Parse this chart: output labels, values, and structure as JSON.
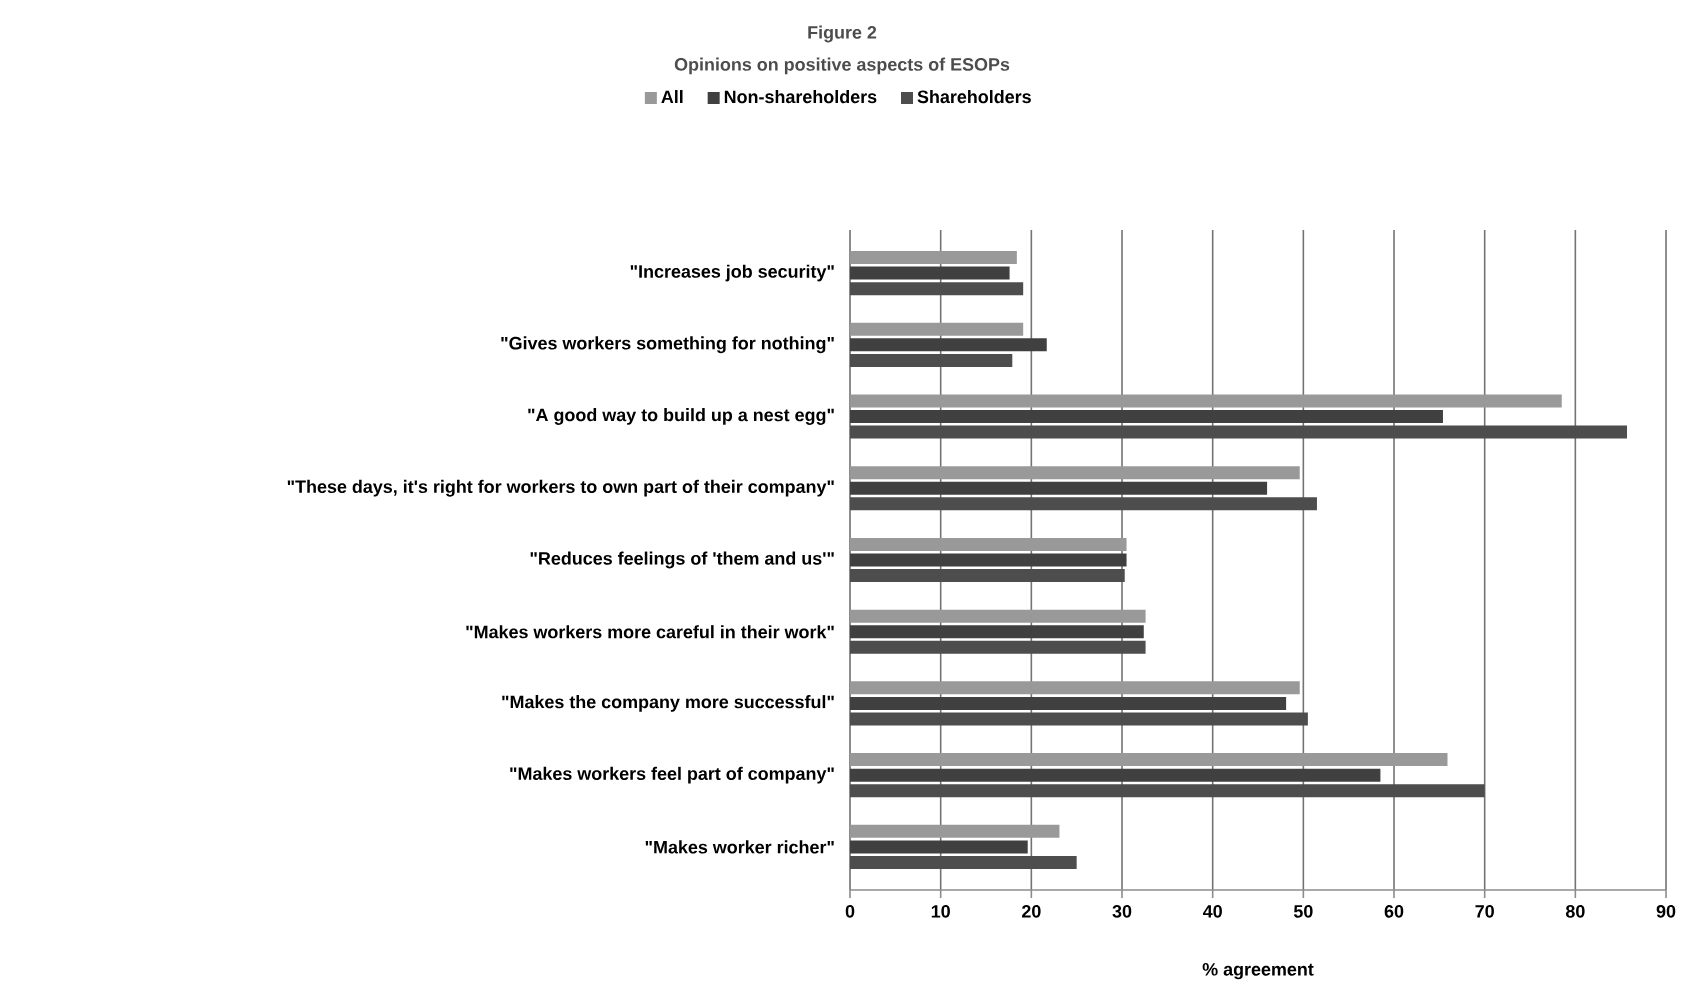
{
  "chart_data": {
    "type": "bar",
    "orientation": "horizontal",
    "title": "Figure 2",
    "subtitle": "Opinions on positive aspects of ESOPs",
    "xlabel": "% agreement",
    "categories": [
      "\"Increases job security\"",
      "\"Gives workers something for nothing\"",
      "\"A good way to build up a nest egg\"",
      "\"These days, it's right for workers to own part of their company\"",
      "\"Reduces feelings of 'them and us'\"",
      "\"Makes workers more careful in their work\"",
      "\"Makes the company more successful\"",
      "\"Makes workers feel part of company\"",
      "\"Makes worker richer\""
    ],
    "series": [
      {
        "name": "All",
        "color": "#999999",
        "values": [
          18.4,
          19.1,
          78.5,
          49.6,
          30.5,
          32.6,
          49.6,
          65.9,
          23.1
        ]
      },
      {
        "name": "Non-shareholders",
        "color": "#404040",
        "values": [
          17.6,
          21.7,
          65.4,
          46.0,
          30.5,
          32.4,
          48.1,
          58.5,
          19.6
        ]
      },
      {
        "name": "Shareholders",
        "color": "#4d4d4d",
        "values": [
          19.1,
          17.9,
          85.7,
          51.5,
          30.3,
          32.6,
          50.5,
          70.0,
          25.0
        ]
      }
    ],
    "xlim": [
      0,
      90
    ],
    "xticks": [
      0,
      10,
      20,
      30,
      40,
      50,
      60,
      70,
      80,
      90
    ],
    "grid": "x",
    "legend": "top"
  }
}
